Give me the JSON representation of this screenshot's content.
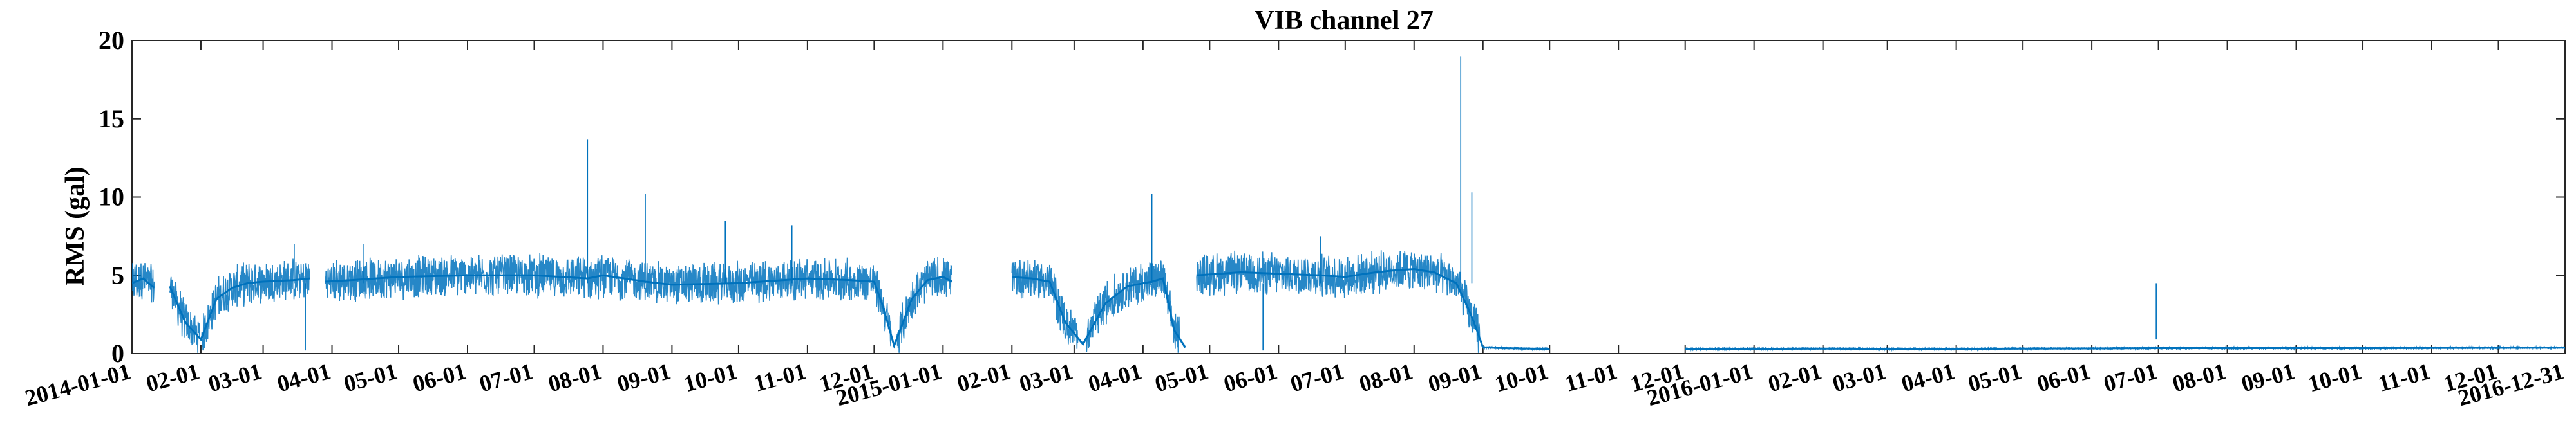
{
  "chart_data": {
    "type": "line",
    "title": "VIB channel 27",
    "xlabel": "",
    "ylabel": "RMS (gal)",
    "xlim": [
      "2014-01-01",
      "2016-12-31"
    ],
    "ylim": [
      0,
      20
    ],
    "yticks": [
      0,
      5,
      10,
      15,
      20
    ],
    "xticks": [
      "2014-01-01",
      "2014-02-01",
      "2014-03-01",
      "2014-04-01",
      "2014-05-01",
      "2014-06-01",
      "2014-07-01",
      "2014-08-01",
      "2014-09-01",
      "2014-10-01",
      "2014-11-01",
      "2014-12-01",
      "2015-01-01",
      "2015-02-01",
      "2015-03-01",
      "2015-04-01",
      "2015-05-01",
      "2015-06-01",
      "2015-07-01",
      "2015-08-01",
      "2015-09-01",
      "2015-10-01",
      "2015-11-01",
      "2015-12-01",
      "2016-01-01",
      "2016-02-01",
      "2016-03-01",
      "2016-04-01",
      "2016-05-01",
      "2016-06-01",
      "2016-07-01",
      "2016-08-01",
      "2016-09-01",
      "2016-10-01",
      "2016-11-01",
      "2016-12-01",
      "2016-12-31"
    ],
    "xticklabels": [
      "2014-01-01",
      "02-01",
      "03-01",
      "04-01",
      "05-01",
      "06-01",
      "07-01",
      "08-01",
      "09-01",
      "10-01",
      "11-01",
      "12-01",
      "2015-01-01",
      "02-01",
      "03-01",
      "04-01",
      "05-01",
      "06-01",
      "07-01",
      "08-01",
      "09-01",
      "10-01",
      "11-01",
      "12-01",
      "2016-01-01",
      "02-01",
      "03-01",
      "04-01",
      "05-01",
      "06-01",
      "07-01",
      "08-01",
      "09-01",
      "10-01",
      "11-01",
      "12-01",
      "2016-12-31"
    ],
    "grid": false,
    "series": [
      {
        "color": "#0072bd",
        "x": [
          "2014-01-01",
          "2014-01-06",
          "2014-01-11",
          "2014-01-13",
          "2014-01-18",
          "2014-01-25",
          "2014-02-01",
          "2014-02-08",
          "2014-02-15",
          "2014-02-22",
          "2014-03-01",
          "2014-03-15",
          "2014-03-22",
          "2014-03-24",
          "2014-03-29",
          "2014-04-10",
          "2014-05-01",
          "2014-06-01",
          "2014-07-01",
          "2014-07-25",
          "2014-08-01",
          "2014-08-20",
          "2014-09-01",
          "2014-10-01",
          "2014-11-01",
          "2014-11-20",
          "2014-12-01",
          "2014-12-05",
          "2014-12-10",
          "2014-12-18",
          "2014-12-25",
          "2015-01-01",
          "2015-01-05",
          "2015-01-18",
          "2015-02-01",
          "2015-02-10",
          "2015-02-18",
          "2015-02-25",
          "2015-03-05",
          "2015-03-15",
          "2015-03-25",
          "2015-04-05",
          "2015-04-10",
          "2015-04-15",
          "2015-04-20",
          "2015-04-22",
          "2015-04-25",
          "2015-05-15",
          "2015-06-01",
          "2015-06-20",
          "2015-07-01",
          "2015-07-10",
          "2015-07-15",
          "2015-07-22",
          "2015-08-01",
          "2015-08-10",
          "2015-08-20",
          "2015-08-25",
          "2015-08-28",
          "2015-09-01",
          "2015-09-10",
          "2015-10-01",
          "2015-11-01",
          "2015-12-01",
          "2016-01-01",
          "2016-02-01",
          "2016-03-01",
          "2016-04-01",
          "2016-05-01",
          "2016-06-01",
          "2016-07-01",
          "2016-08-01",
          "2016-09-01",
          "2016-10-01",
          "2016-11-01",
          "2016-12-01",
          "2016-12-31"
        ],
        "y": [
          4.5,
          4.8,
          4.2,
          null,
          4.3,
          2.0,
          0.9,
          3.5,
          4.2,
          4.5,
          4.6,
          4.7,
          4.8,
          null,
          4.6,
          4.7,
          4.9,
          5.0,
          5.0,
          4.8,
          5.0,
          4.6,
          4.4,
          4.5,
          4.8,
          4.7,
          4.6,
          3.0,
          0.5,
          3.5,
          4.7,
          4.9,
          4.6,
          null,
          4.9,
          4.8,
          4.6,
          2.0,
          0.6,
          3.2,
          4.3,
          4.6,
          4.8,
          1.5,
          0.4,
          null,
          5.0,
          5.2,
          5.1,
          5.0,
          4.9,
          5.1,
          5.2,
          5.3,
          5.4,
          5.2,
          4.5,
          3.0,
          2.0,
          0.4,
          0.35,
          0.3,
          null,
          0.3,
          0.3,
          0.32,
          0.3,
          0.3,
          0.32,
          0.33,
          0.35,
          0.35,
          0.35,
          0.35,
          0.36,
          0.37,
          0.38
        ]
      }
    ],
    "spikes": [
      {
        "x": "2014-02-20",
        "y": 4.5
      },
      {
        "x": "2014-03-15",
        "y": 7.0
      },
      {
        "x": "2014-03-20",
        "y": 0.2
      },
      {
        "x": "2014-04-15",
        "y": 7.0
      },
      {
        "x": "2014-07-25",
        "y": 13.7
      },
      {
        "x": "2014-08-20",
        "y": 10.2
      },
      {
        "x": "2014-09-25",
        "y": 8.5
      },
      {
        "x": "2014-10-25",
        "y": 8.2
      },
      {
        "x": "2015-04-05",
        "y": 10.2
      },
      {
        "x": "2015-05-25",
        "y": 0.2
      },
      {
        "x": "2015-06-20",
        "y": 7.5
      },
      {
        "x": "2015-08-22",
        "y": 19.0
      },
      {
        "x": "2015-08-27",
        "y": 10.3
      },
      {
        "x": "2016-06-30",
        "y": 0.9
      }
    ]
  }
}
